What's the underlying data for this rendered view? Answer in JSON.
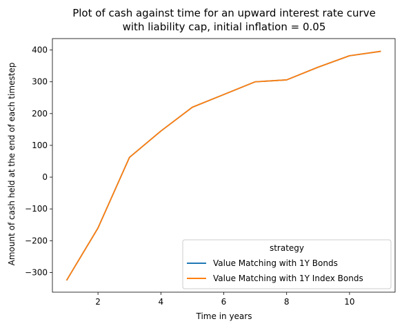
{
  "chart_data": {
    "type": "line",
    "title_lines": [
      "Plot of cash against time for an upward interest rate curve",
      "with liability cap, initial inflation = 0.05"
    ],
    "xlabel": "Time in years",
    "ylabel": "Amount of cash held at the end of each timestep",
    "xlim": [
      0.55,
      11.45
    ],
    "ylim": [
      -362,
      436
    ],
    "xticks": [
      2,
      4,
      6,
      8,
      10
    ],
    "yticks": [
      -300,
      -200,
      -100,
      0,
      100,
      200,
      300,
      400
    ],
    "x": [
      1,
      2,
      3,
      4,
      5,
      6,
      7,
      8,
      9,
      10,
      11
    ],
    "series": [
      {
        "name": "Value Matching with 1Y Bonds",
        "color": "#1f77b4",
        "values": [
          -325,
          -160,
          62,
          145,
          220,
          260,
          300,
          306,
          346,
          382,
          396
        ]
      },
      {
        "name": "Value Matching with 1Y Index Bonds",
        "color": "#ff7f0e",
        "values": [
          -325,
          -160,
          62,
          145,
          220,
          260,
          300,
          306,
          346,
          382,
          396
        ]
      }
    ],
    "legend": {
      "title": "strategy",
      "placement": "lower-right"
    },
    "grid": false
  }
}
